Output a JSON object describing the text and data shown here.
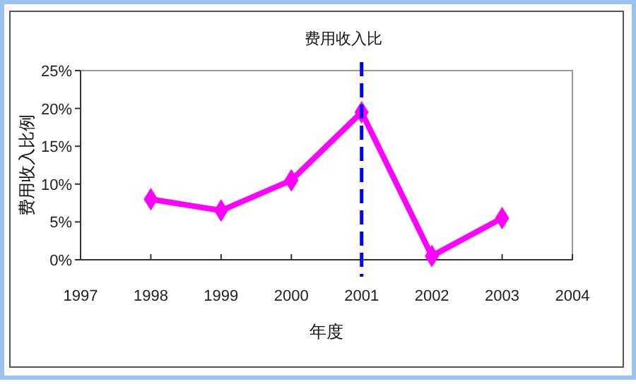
{
  "chart_data": {
    "type": "line",
    "title": "费用收入比",
    "xlabel": "年度",
    "ylabel": "费用收入比例",
    "x": [
      1998,
      1999,
      2000,
      2001,
      2002,
      2003
    ],
    "series": [
      {
        "color": "#ff00ff",
        "values": [
          8,
          6.5,
          10.5,
          19.5,
          0.5,
          5.5
        ]
      }
    ],
    "xlim": [
      1997,
      2004
    ],
    "xticks": [
      1997,
      1998,
      1999,
      2000,
      2001,
      2002,
      2003,
      2004
    ],
    "ylim": [
      0,
      25
    ],
    "yticks": [
      {
        "value": 0,
        "label": "0%"
      },
      {
        "value": 5,
        "label": "5%"
      },
      {
        "value": 10,
        "label": "10%"
      },
      {
        "value": 15,
        "label": "15%"
      },
      {
        "value": 20,
        "label": "20%"
      },
      {
        "value": 25,
        "label": "25%"
      }
    ],
    "ref_lines": [
      {
        "axis": "x",
        "value": 2001,
        "color": "#0000ff",
        "line_style": "dashed"
      }
    ],
    "marker": "diamond",
    "line_style": "solid"
  }
}
